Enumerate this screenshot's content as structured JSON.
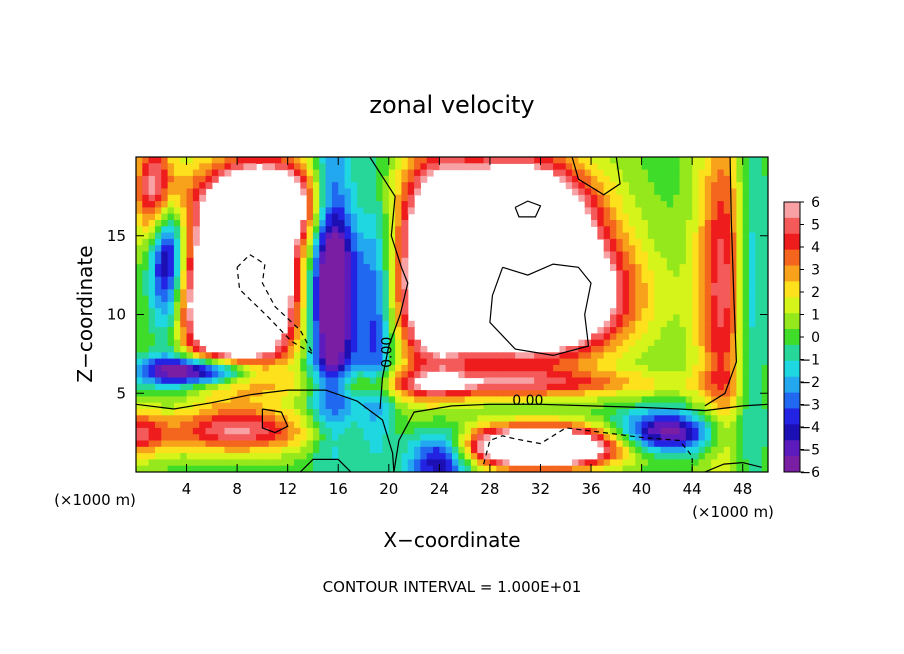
{
  "chart_data": {
    "type": "heatmap",
    "title": "zonal velocity",
    "xlabel": "X−coordinate",
    "ylabel": "Z−coordinate",
    "x_unit_left": "(×1000 m)",
    "x_unit_right": "(×1000 m)",
    "footer": "CONTOUR INTERVAL = 1.000E+01",
    "xlim": [
      0,
      50
    ],
    "ylim": [
      0,
      20
    ],
    "x_ticks": [
      4,
      8,
      12,
      16,
      20,
      24,
      28,
      32,
      36,
      40,
      44,
      48
    ],
    "y_ticks": [
      5,
      10,
      15
    ],
    "colorbar": {
      "range": [
        -6,
        6
      ],
      "ticks": [
        "6",
        "5",
        "4",
        "3",
        "2",
        "1",
        "0",
        "−1",
        "−2",
        "−3",
        "−4",
        "−5",
        "−6"
      ],
      "colors": [
        "#f7a1a4",
        "#f45a5a",
        "#ee1c1c",
        "#f4651d",
        "#f8a11b",
        "#fde11c",
        "#d4f41a",
        "#94e81b",
        "#3fdc2a",
        "#27d79a",
        "#1fd7e0",
        "#23a8f0",
        "#2068ef",
        "#2323e3",
        "#1c0fb3",
        "#5d1bbd",
        "#7a1fa3"
      ]
    },
    "zero_contour_labels": [
      {
        "text": "0.00",
        "x": 19.9,
        "z": 7.6
      },
      {
        "text": "0.00",
        "x": 31.0,
        "z": 4.5
      }
    ],
    "contour_levels": [
      -10,
      0,
      10
    ]
  }
}
